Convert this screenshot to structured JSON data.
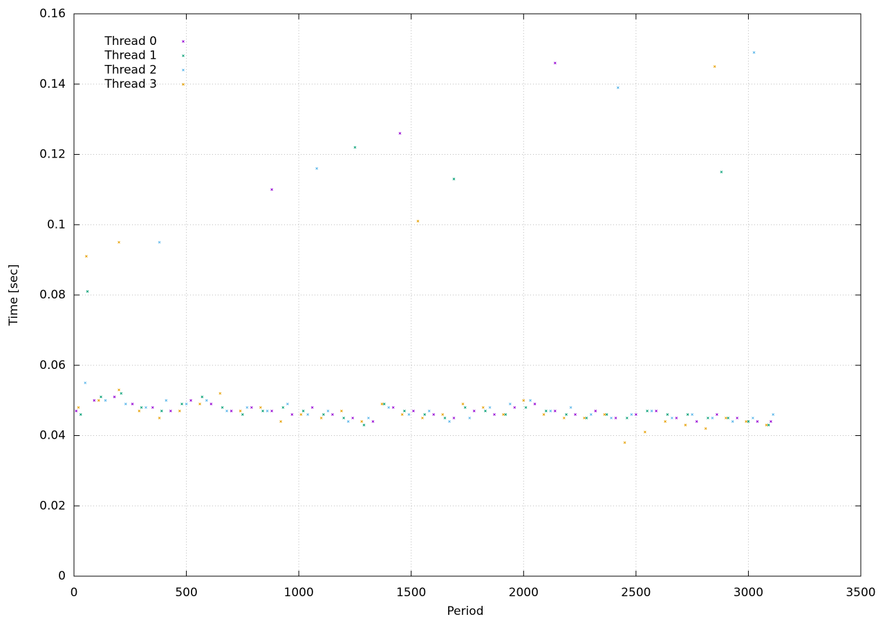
{
  "chart_data": {
    "type": "scatter",
    "xlabel": "Period",
    "ylabel": "Time [sec]",
    "xlim": [
      0,
      3500
    ],
    "xticks": [
      0,
      500,
      1000,
      1500,
      2000,
      2500,
      3000,
      3500
    ],
    "ylim": [
      0,
      0.16
    ],
    "yticks": [
      0,
      0.02,
      0.04,
      0.06,
      0.08,
      0.1,
      0.12,
      0.14,
      0.16
    ],
    "grid": true,
    "legend": "upper left",
    "series": [
      {
        "name": "Thread 0",
        "color": "#9400d3",
        "x": [
          10,
          90,
          180,
          260,
          350,
          430,
          520,
          610,
          700,
          790,
          880,
          970,
          1060,
          1150,
          1240,
          1330,
          1420,
          1510,
          1600,
          1690,
          1780,
          1870,
          1960,
          2050,
          2140,
          2230,
          2320,
          2410,
          2500,
          2590,
          2680,
          2770,
          2860,
          2950,
          3040,
          3100,
          2140,
          1450,
          880
        ],
        "values": [
          0.047,
          0.05,
          0.051,
          0.049,
          0.048,
          0.047,
          0.05,
          0.049,
          0.047,
          0.048,
          0.047,
          0.046,
          0.048,
          0.046,
          0.045,
          0.044,
          0.048,
          0.047,
          0.046,
          0.045,
          0.047,
          0.046,
          0.048,
          0.049,
          0.047,
          0.046,
          0.047,
          0.045,
          0.046,
          0.047,
          0.045,
          0.044,
          0.046,
          0.045,
          0.044,
          0.044,
          0.146,
          0.126,
          0.11
        ]
      },
      {
        "name": "Thread 1",
        "color": "#009e73",
        "x": [
          30,
          120,
          210,
          300,
          390,
          480,
          570,
          660,
          750,
          840,
          930,
          1020,
          1110,
          1200,
          1290,
          1380,
          1470,
          1560,
          1650,
          1740,
          1830,
          1920,
          2010,
          2100,
          2190,
          2280,
          2370,
          2460,
          2550,
          2640,
          2730,
          2820,
          2910,
          3000,
          3090,
          60,
          1250,
          1690,
          2880
        ],
        "values": [
          0.046,
          0.051,
          0.052,
          0.048,
          0.047,
          0.049,
          0.051,
          0.048,
          0.046,
          0.047,
          0.048,
          0.047,
          0.046,
          0.045,
          0.043,
          0.049,
          0.047,
          0.046,
          0.045,
          0.048,
          0.047,
          0.046,
          0.048,
          0.047,
          0.046,
          0.045,
          0.046,
          0.045,
          0.047,
          0.046,
          0.046,
          0.045,
          0.045,
          0.044,
          0.043,
          0.081,
          0.122,
          0.113,
          0.115
        ]
      },
      {
        "name": "Thread 2",
        "color": "#56b4e9",
        "x": [
          50,
          140,
          230,
          320,
          410,
          500,
          590,
          680,
          770,
          860,
          950,
          1040,
          1130,
          1220,
          1310,
          1400,
          1490,
          1580,
          1670,
          1760,
          1850,
          1940,
          2030,
          2120,
          2210,
          2300,
          2390,
          2480,
          2570,
          2660,
          2750,
          2840,
          2930,
          3020,
          3110,
          380,
          1080,
          2420,
          3025
        ],
        "values": [
          0.055,
          0.05,
          0.049,
          0.048,
          0.05,
          0.049,
          0.05,
          0.047,
          0.048,
          0.047,
          0.049,
          0.046,
          0.047,
          0.044,
          0.045,
          0.048,
          0.046,
          0.047,
          0.044,
          0.045,
          0.048,
          0.049,
          0.05,
          0.047,
          0.048,
          0.046,
          0.045,
          0.046,
          0.047,
          0.045,
          0.046,
          0.045,
          0.044,
          0.045,
          0.046,
          0.095,
          0.116,
          0.139,
          0.149
        ]
      },
      {
        "name": "Thread 3",
        "color": "#e69f00",
        "x": [
          20,
          110,
          200,
          290,
          380,
          470,
          560,
          650,
          740,
          830,
          920,
          1010,
          1100,
          1190,
          1280,
          1370,
          1460,
          1550,
          1640,
          1730,
          1820,
          1910,
          2000,
          2090,
          2180,
          2270,
          2360,
          2450,
          2540,
          2630,
          2720,
          2810,
          2900,
          2990,
          3080,
          55,
          200,
          1530,
          2850
        ],
        "values": [
          0.048,
          0.05,
          0.053,
          0.047,
          0.045,
          0.047,
          0.049,
          0.052,
          0.047,
          0.048,
          0.044,
          0.046,
          0.045,
          0.047,
          0.044,
          0.049,
          0.046,
          0.045,
          0.046,
          0.049,
          0.048,
          0.046,
          0.05,
          0.046,
          0.045,
          0.045,
          0.046,
          0.038,
          0.041,
          0.044,
          0.043,
          0.042,
          0.045,
          0.044,
          0.043,
          0.091,
          0.095,
          0.101,
          0.145
        ]
      }
    ]
  }
}
